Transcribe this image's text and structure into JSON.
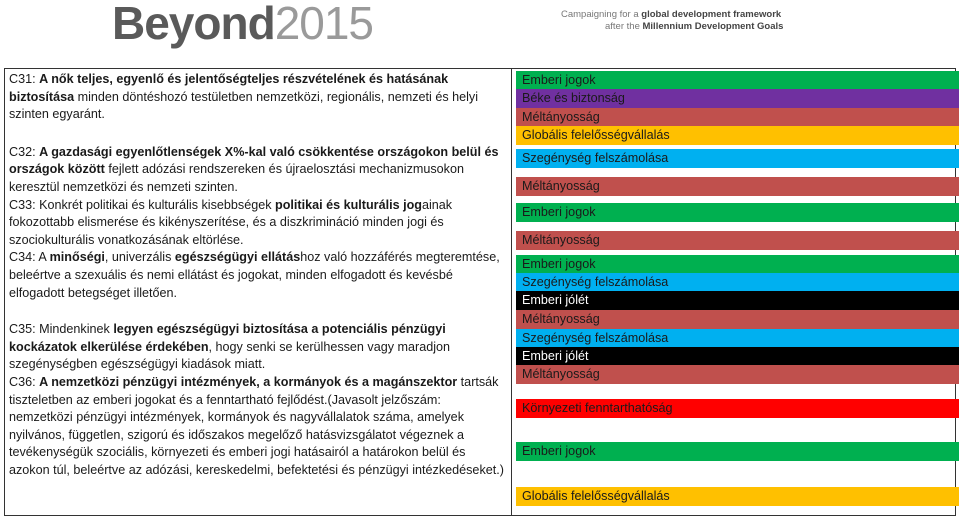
{
  "header": {
    "logo_part1": "Beyond",
    "logo_part2": "2015",
    "tagline_line1_pre": "Campaigning for a ",
    "tagline_line1_bold": "global development framework",
    "tagline_line2_pre": "after the ",
    "tagline_line2_bold": "Millennium Development Goals"
  },
  "rows": {
    "c31": {
      "pre": "C31: ",
      "bold": "A nők teljes, egyenlő és jelentőségteljes részvételének és hatásának biztosítása",
      "post": " minden döntéshozó testületben nemzetközi, regionális, nemzeti és helyi szinten egyaránt."
    },
    "c32": {
      "pre": "C32: ",
      "bold1": "A gazdasági egyenlőtlenségek X%-kal való csökkentése országokon belül és országok között",
      "post": " fejlett adózási rendszereken és újraelosztási mechanizmusokon keresztül nemzetközi és nemzeti szinten."
    },
    "c33": {
      "pre": "C33: Konkrét politikai és kulturális kisebbségek ",
      "bold": "politikai és kulturális jog",
      "post": "ainak fokozottabb elismerése és kikényszerítése, és a diszkrimináció minden jogi és szociokulturális vonatkozásának eltörlése."
    },
    "c34": {
      "pre": "C34: A ",
      "bold1": "minőségi",
      "mid": ", univerzális ",
      "bold2": "egészségügyi ellátás",
      "post": "hoz való hozzáférés megteremtése, beleértve a szexuális és nemi ellátást és jogokat, minden elfogadott és kevésbé elfogadott betegséget illetően."
    },
    "c35": {
      "pre": "C35: Mindenkinek ",
      "bold1": "legyen egészségügyi biztosítása a potenciális pénzügyi kockázatok elkerülése érdekében",
      "post": ", hogy senki se kerülhessen vagy maradjon szegénységben egészségügyi kiadások miatt."
    },
    "c36": {
      "pre": "C36: ",
      "bold1": "A nemzetközi pénzügyi intézmények, a kormányok és a magánszektor",
      "post": " tartsák tiszteletben az emberi jogokat és a fenntartható fejlődést.(Javasolt jelzőszám: nemzetközi pénzügyi intézmények, kormányok és nagyvállalatok száma, amelyek nyilvános, független, szigorú és időszakos megelőző hatásvizsgálatot végeznek a tevékenységük szociális, környezeti és emberi jogi hatásairól a határokon belül és azokon túl, beleértve az adózási, kereskedelmi, befektetési és pénzügyi intézkedéseket.)"
    }
  },
  "colors": {
    "emberi_jogok": "#00b050",
    "beke": "#7030a0",
    "meltanyossag": "#c0504d",
    "globalis": "#ffc000",
    "szegenyseg": "#00b0f0",
    "emberi_jolet": "#000000",
    "kornyezeti": "#ff0000"
  },
  "tags": [
    {
      "label": "Emberi jogok",
      "color": "#00b050",
      "text": "#1a1a1a"
    },
    {
      "label": "Béke és biztonság",
      "color": "#7030a0",
      "text": "#1a1a1a"
    },
    {
      "label": "Méltányosság",
      "color": "#c0504d",
      "text": "#1a1a1a"
    },
    {
      "label": "Globális felelősségvállalás",
      "color": "#ffc000",
      "text": "#1a1a1a"
    },
    {
      "label": "Szegénység felszámolása",
      "color": "#00b0f0",
      "text": "#1a1a1a"
    },
    {
      "label": "Méltányosság",
      "color": "#c0504d",
      "text": "#1a1a1a"
    },
    {
      "label": "Emberi jogok",
      "color": "#00b050",
      "text": "#1a1a1a"
    },
    {
      "label": "Méltányosság",
      "color": "#c0504d",
      "text": "#1a1a1a"
    },
    {
      "label": "Emberi jogok",
      "color": "#00b050",
      "text": "#1a1a1a"
    },
    {
      "label": "Szegénység felszámolása",
      "color": "#00b0f0",
      "text": "#1a1a1a"
    },
    {
      "label": "Emberi jólét",
      "color": "#000000",
      "text": "#ffffff"
    },
    {
      "label": "Méltányosság",
      "color": "#c0504d",
      "text": "#1a1a1a"
    },
    {
      "label": "Szegénység felszámolása",
      "color": "#00b0f0",
      "text": "#1a1a1a"
    },
    {
      "label": "Emberi jólét",
      "color": "#000000",
      "text": "#ffffff"
    },
    {
      "label": "Méltányosság",
      "color": "#c0504d",
      "text": "#1a1a1a"
    },
    {
      "label": "Környezeti fenntarthatóság",
      "color": "#ff0000",
      "text": "#1a1a1a"
    },
    {
      "label": "Emberi jogok",
      "color": "#00b050",
      "text": "#1a1a1a"
    },
    {
      "label": "Globális felelősségvállalás",
      "color": "#ffc000",
      "text": "#1a1a1a"
    }
  ]
}
